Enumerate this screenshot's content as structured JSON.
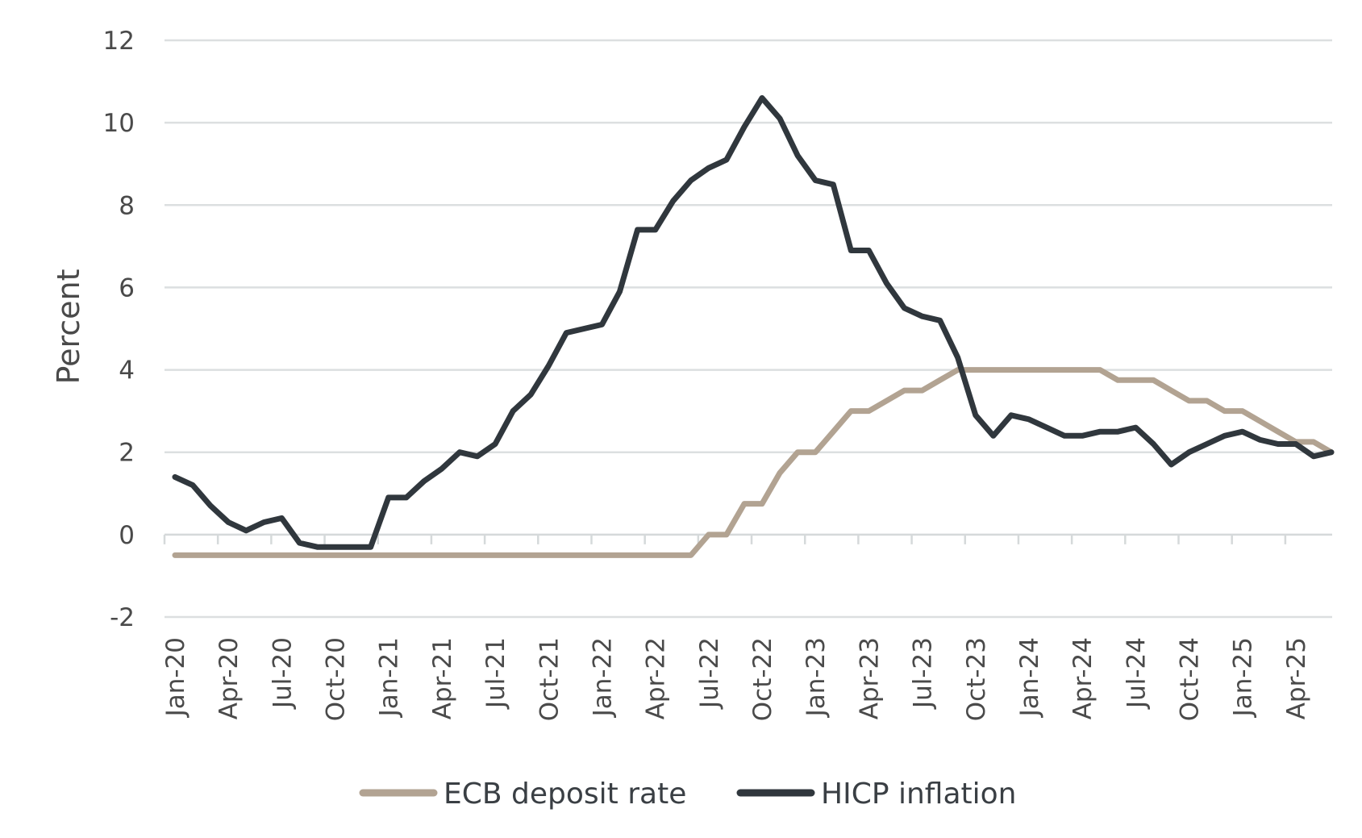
{
  "chart_data": {
    "type": "line",
    "ylabel": "Percent",
    "ylim": [
      -2,
      12
    ],
    "yticks": [
      -2,
      0,
      2,
      4,
      6,
      8,
      10,
      12
    ],
    "grid": true,
    "legend_position": "bottom",
    "x": [
      "Jan-20",
      "Feb-20",
      "Mar-20",
      "Apr-20",
      "May-20",
      "Jun-20",
      "Jul-20",
      "Aug-20",
      "Sep-20",
      "Oct-20",
      "Nov-20",
      "Dec-20",
      "Jan-21",
      "Feb-21",
      "Mar-21",
      "Apr-21",
      "May-21",
      "Jun-21",
      "Jul-21",
      "Aug-21",
      "Sep-21",
      "Oct-21",
      "Nov-21",
      "Dec-21",
      "Jan-22",
      "Feb-22",
      "Mar-22",
      "Apr-22",
      "May-22",
      "Jun-22",
      "Jul-22",
      "Aug-22",
      "Sep-22",
      "Oct-22",
      "Nov-22",
      "Dec-22",
      "Jan-23",
      "Feb-23",
      "Mar-23",
      "Apr-23",
      "May-23",
      "Jun-23",
      "Jul-23",
      "Aug-23",
      "Sep-23",
      "Oct-23",
      "Nov-23",
      "Dec-23",
      "Jan-24",
      "Feb-24",
      "Mar-24",
      "Apr-24",
      "May-24",
      "Jun-24",
      "Jul-24",
      "Aug-24",
      "Sep-24",
      "Oct-24",
      "Nov-24",
      "Dec-24",
      "Jan-25",
      "Feb-25",
      "Mar-25",
      "Apr-25",
      "May-25",
      "Jun-25"
    ],
    "x_tick_labels": [
      "Jan-20",
      "Apr-20",
      "Jul-20",
      "Oct-20",
      "Jan-21",
      "Apr-21",
      "Jul-21",
      "Oct-21",
      "Jan-22",
      "Apr-22",
      "Jul-22",
      "Oct-22",
      "Jan-23",
      "Apr-23",
      "Jul-23",
      "Oct-23",
      "Jan-24",
      "Apr-24",
      "Jul-24",
      "Oct-24",
      "Jan-25",
      "Apr-25"
    ],
    "series": [
      {
        "name": "ECB deposit rate",
        "color": "#b2a392",
        "values": [
          -0.5,
          -0.5,
          -0.5,
          -0.5,
          -0.5,
          -0.5,
          -0.5,
          -0.5,
          -0.5,
          -0.5,
          -0.5,
          -0.5,
          -0.5,
          -0.5,
          -0.5,
          -0.5,
          -0.5,
          -0.5,
          -0.5,
          -0.5,
          -0.5,
          -0.5,
          -0.5,
          -0.5,
          -0.5,
          -0.5,
          -0.5,
          -0.5,
          -0.5,
          -0.5,
          0,
          0,
          0.75,
          0.75,
          1.5,
          2,
          2,
          2.5,
          3,
          3,
          3.25,
          3.5,
          3.5,
          3.75,
          4,
          4,
          4,
          4,
          4,
          4,
          4,
          4,
          4,
          3.75,
          3.75,
          3.75,
          3.5,
          3.25,
          3.25,
          3,
          3,
          2.75,
          2.5,
          2.25,
          2.25,
          2
        ]
      },
      {
        "name": "HICP inflation",
        "color": "#30373d",
        "values": [
          1.4,
          1.2,
          0.7,
          0.3,
          0.1,
          0.3,
          0.4,
          -0.2,
          -0.3,
          -0.3,
          -0.3,
          -0.3,
          0.9,
          0.9,
          1.3,
          1.6,
          2.0,
          1.9,
          2.2,
          3.0,
          3.4,
          4.1,
          4.9,
          5.0,
          5.1,
          5.9,
          7.4,
          7.4,
          8.1,
          8.6,
          8.9,
          9.1,
          9.9,
          10.6,
          10.1,
          9.2,
          8.6,
          8.5,
          6.9,
          6.9,
          6.1,
          5.5,
          5.3,
          5.2,
          4.3,
          2.9,
          2.4,
          2.9,
          2.8,
          2.6,
          2.4,
          2.4,
          2.5,
          2.5,
          2.6,
          2.2,
          1.7,
          2.0,
          2.2,
          2.4,
          2.5,
          2.3,
          2.2,
          2.2,
          1.9,
          2.0
        ]
      }
    ]
  }
}
